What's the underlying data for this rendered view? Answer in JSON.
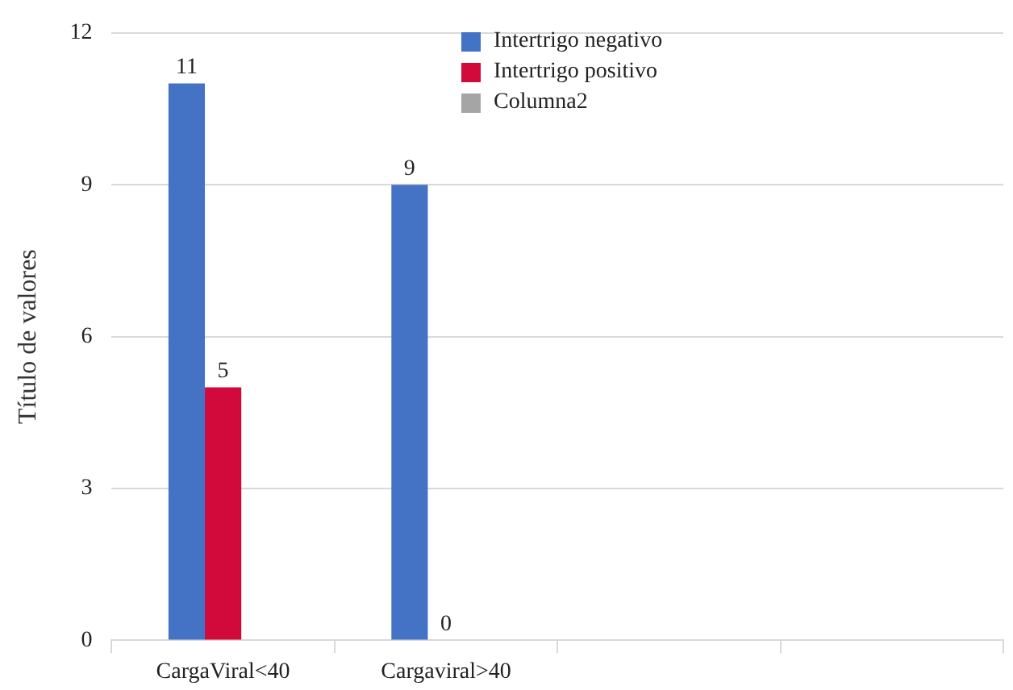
{
  "chart_data": {
    "type": "bar",
    "ylabel": "Título de valores",
    "categories": [
      "CargaViral<40",
      "Cargaviral>40",
      null,
      null
    ],
    "series": [
      {
        "name": "Intertrigo negativo",
        "color": "#4472c4",
        "values": [
          11,
          9,
          null,
          null
        ]
      },
      {
        "name": "Intertrigo positivo",
        "color": "#d20a3c",
        "values": [
          5,
          0,
          null,
          null
        ]
      },
      {
        "name": "Columna2",
        "color": "#a5a5a5",
        "values": [
          null,
          null,
          null,
          null
        ]
      }
    ],
    "ylim": [
      0,
      12
    ],
    "yticks": [
      0,
      3,
      6,
      9,
      12
    ],
    "grid": "y",
    "legend": "top right",
    "data_labels": true
  }
}
